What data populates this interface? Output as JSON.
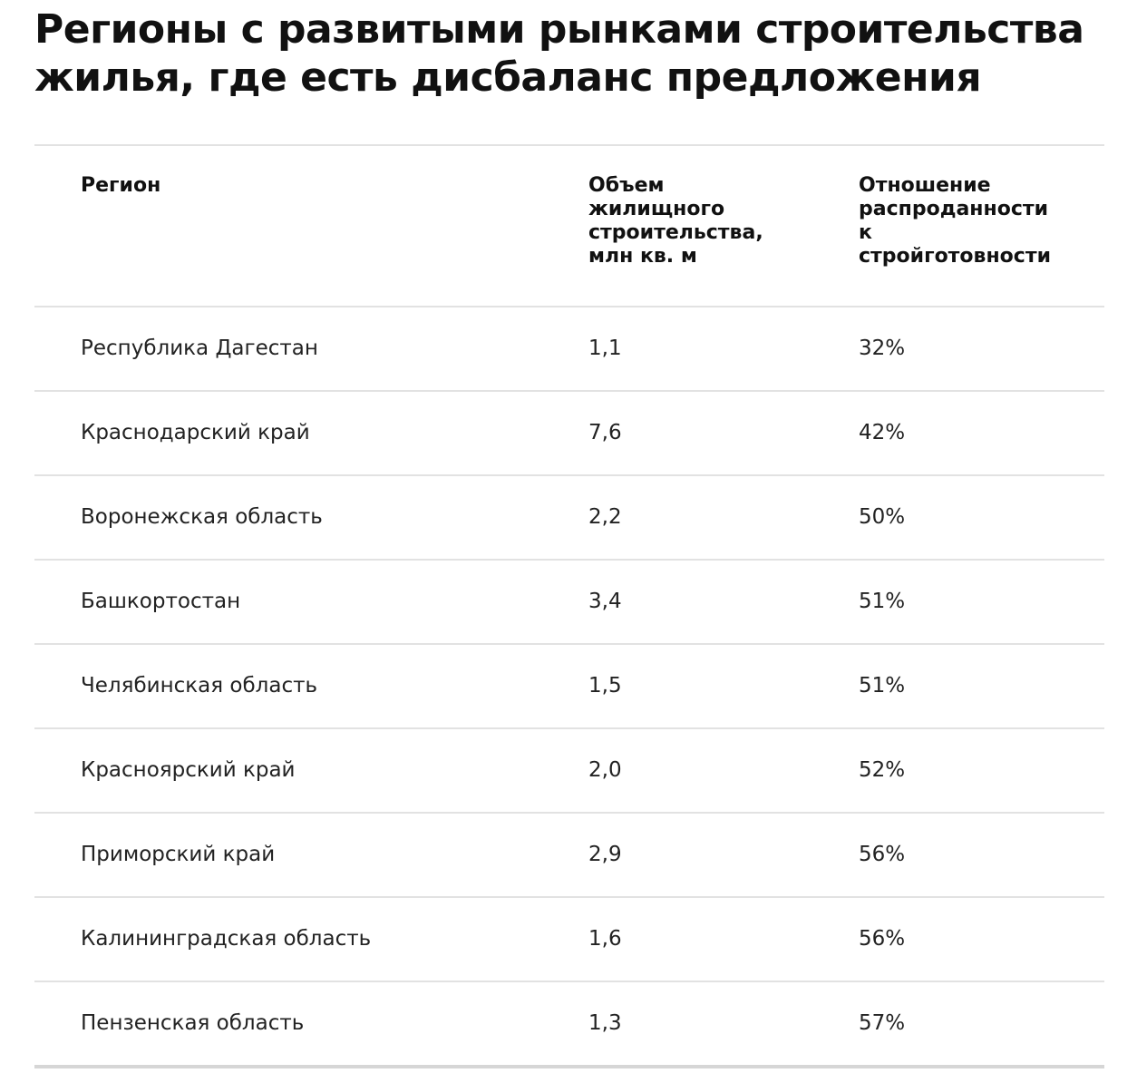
{
  "title": "Регионы с развитыми рынками строительства жилья, где есть дисбаланс предложения",
  "table": {
    "headers": {
      "region": "Регион",
      "volume": "Объем\nжилищного\nстроительства,\nмлн кв. м",
      "ratio": "Отношение\nраспроданности\nк\nстройготовности"
    },
    "rows": [
      {
        "region": "Республика Дагестан",
        "volume": "1,1",
        "ratio": "32%"
      },
      {
        "region": "Краснодарский край",
        "volume": "7,6",
        "ratio": "42%"
      },
      {
        "region": "Воронежская область",
        "volume": "2,2",
        "ratio": "50%"
      },
      {
        "region": "Башкортостан",
        "volume": "3,4",
        "ratio": "51%"
      },
      {
        "region": "Челябинская область",
        "volume": "1,5",
        "ratio": "51%"
      },
      {
        "region": "Красноярский край",
        "volume": "2,0",
        "ratio": "52%"
      },
      {
        "region": "Приморский край",
        "volume": "2,9",
        "ratio": "56%"
      },
      {
        "region": "Калининградская область",
        "volume": "1,6",
        "ratio": "56%"
      },
      {
        "region": "Пензенская область",
        "volume": "1,3",
        "ratio": "57%"
      }
    ]
  }
}
